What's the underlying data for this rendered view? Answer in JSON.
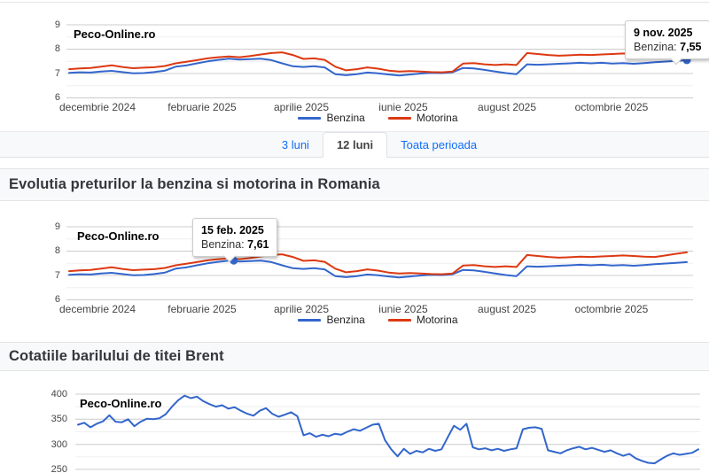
{
  "brand": "Peco-Online.ro",
  "tabs": {
    "items": [
      {
        "label": "3 luni",
        "active": false
      },
      {
        "label": "12 luni",
        "active": true
      },
      {
        "label": "Toata perioada",
        "active": false
      }
    ]
  },
  "sections": {
    "fuel_heading": "Evolutia preturilor la benzina si motorina in Romania",
    "brent_heading": "Cotatiile barilului de titei Brent"
  },
  "colors": {
    "benzina": "#3366cc",
    "motorina": "#dc3912",
    "brent": "#3366cc"
  },
  "chart_data": [
    {
      "type": "line",
      "title": "Peco-Online.ro",
      "period": "12 luni",
      "ylim": [
        6,
        9
      ],
      "y_ticks": [
        "9",
        "8",
        "7",
        "6"
      ],
      "x_labels": [
        "decembrie 2024",
        "februarie 2025",
        "aprilie 2025",
        "iunie 2025",
        "august 2025",
        "octombrie 2025"
      ],
      "legend_position": "bottom",
      "grid": "on",
      "series": [
        {
          "name": "Benzina",
          "color": "#3366cc",
          "values": [
            7.03,
            7.05,
            7.04,
            7.08,
            7.11,
            7.06,
            7.01,
            7.02,
            7.06,
            7.12,
            7.28,
            7.33,
            7.42,
            7.5,
            7.56,
            7.61,
            7.57,
            7.59,
            7.61,
            7.55,
            7.42,
            7.3,
            7.27,
            7.3,
            7.25,
            6.97,
            6.93,
            6.97,
            7.04,
            7.01,
            6.96,
            6.92,
            6.96,
            7.0,
            7.03,
            7.02,
            7.05,
            7.23,
            7.21,
            7.15,
            7.08,
            7.02,
            6.97,
            7.38,
            7.36,
            7.38,
            7.4,
            7.42,
            7.44,
            7.42,
            7.44,
            7.41,
            7.43,
            7.4,
            7.43,
            7.46,
            7.49,
            7.52,
            7.55
          ]
        },
        {
          "name": "Motorina",
          "color": "#dc3912",
          "values": [
            7.18,
            7.21,
            7.23,
            7.28,
            7.34,
            7.27,
            7.22,
            7.24,
            7.26,
            7.31,
            7.42,
            7.48,
            7.55,
            7.62,
            7.67,
            7.7,
            7.67,
            7.72,
            7.78,
            7.84,
            7.87,
            7.76,
            7.6,
            7.62,
            7.56,
            7.28,
            7.13,
            7.18,
            7.25,
            7.2,
            7.12,
            7.08,
            7.1,
            7.08,
            7.06,
            7.05,
            7.08,
            7.41,
            7.43,
            7.38,
            7.35,
            7.38,
            7.35,
            7.84,
            7.8,
            7.76,
            7.73,
            7.75,
            7.77,
            7.76,
            7.78,
            7.8,
            7.82,
            7.8,
            7.77,
            7.76,
            7.82,
            7.89,
            7.95
          ]
        }
      ],
      "tooltip": {
        "date": "9 nov. 2025",
        "label": "Benzina:",
        "value": "7,55",
        "point_value": 7.55,
        "point_frac": 1.0,
        "series": 0
      }
    },
    {
      "type": "line",
      "title": "Peco-Online.ro",
      "period": "12 luni",
      "ylim": [
        6,
        9
      ],
      "y_ticks": [
        "9",
        "8",
        "7",
        "6"
      ],
      "x_labels": [
        "decembrie 2024",
        "februarie 2025",
        "aprilie 2025",
        "iunie 2025",
        "august 2025",
        "octombrie 2025"
      ],
      "legend_position": "bottom",
      "grid": "on",
      "series": [
        {
          "name": "Benzina",
          "color": "#3366cc",
          "values": [
            7.03,
            7.05,
            7.04,
            7.08,
            7.11,
            7.06,
            7.01,
            7.02,
            7.06,
            7.12,
            7.28,
            7.33,
            7.42,
            7.5,
            7.56,
            7.61,
            7.57,
            7.59,
            7.61,
            7.55,
            7.42,
            7.3,
            7.27,
            7.3,
            7.25,
            6.97,
            6.93,
            6.97,
            7.04,
            7.01,
            6.96,
            6.92,
            6.96,
            7.0,
            7.03,
            7.02,
            7.05,
            7.23,
            7.21,
            7.15,
            7.08,
            7.02,
            6.97,
            7.38,
            7.36,
            7.38,
            7.4,
            7.42,
            7.44,
            7.42,
            7.44,
            7.41,
            7.43,
            7.4,
            7.43,
            7.46,
            7.49,
            7.52,
            7.55
          ]
        },
        {
          "name": "Motorina",
          "color": "#dc3912",
          "values": [
            7.18,
            7.21,
            7.23,
            7.28,
            7.34,
            7.27,
            7.22,
            7.24,
            7.26,
            7.31,
            7.42,
            7.48,
            7.55,
            7.62,
            7.67,
            7.7,
            7.67,
            7.72,
            7.78,
            7.84,
            7.87,
            7.76,
            7.6,
            7.62,
            7.56,
            7.28,
            7.13,
            7.18,
            7.25,
            7.2,
            7.12,
            7.08,
            7.1,
            7.08,
            7.06,
            7.05,
            7.08,
            7.41,
            7.43,
            7.38,
            7.35,
            7.38,
            7.35,
            7.84,
            7.8,
            7.76,
            7.73,
            7.75,
            7.77,
            7.76,
            7.78,
            7.8,
            7.82,
            7.8,
            7.77,
            7.76,
            7.82,
            7.89,
            7.95
          ]
        }
      ],
      "tooltip": {
        "date": "15 feb. 2025",
        "label": "Benzina:",
        "value": "7,61",
        "point_value": 7.61,
        "point_frac": 0.2665,
        "series": 0
      }
    },
    {
      "type": "line",
      "title": "Peco-Online.ro",
      "ylim": [
        250,
        400
      ],
      "y_ticks": [
        "400",
        "350",
        "300",
        "250"
      ],
      "x_labels": [],
      "grid": "on",
      "series": [
        {
          "name": "Brent",
          "color": "#3366cc",
          "values": [
            339,
            343,
            334,
            341,
            346,
            358,
            345,
            344,
            350,
            336,
            345,
            351,
            350,
            352,
            360,
            375,
            388,
            397,
            392,
            395,
            386,
            380,
            375,
            378,
            371,
            374,
            367,
            361,
            357,
            367,
            372,
            361,
            355,
            359,
            364,
            356,
            318,
            322,
            315,
            319,
            316,
            321,
            319,
            325,
            330,
            327,
            333,
            339,
            341,
            308,
            290,
            276,
            291,
            281,
            287,
            284,
            291,
            287,
            290,
            314,
            337,
            329,
            341,
            294,
            290,
            292,
            288,
            291,
            287,
            290,
            292,
            330,
            333,
            334,
            331,
            288,
            285,
            282,
            288,
            292,
            295,
            290,
            293,
            289,
            285,
            288,
            282,
            277,
            281,
            272,
            267,
            263,
            262,
            270,
            277,
            282,
            279,
            281,
            283,
            290
          ]
        }
      ]
    }
  ]
}
